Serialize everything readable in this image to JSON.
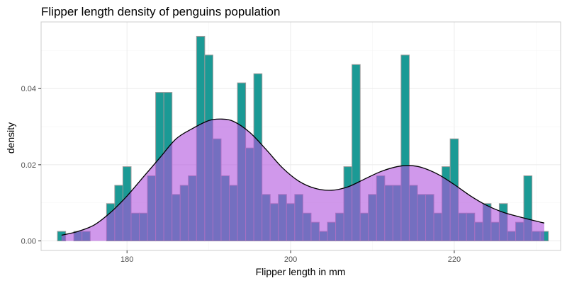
{
  "chart_data": {
    "type": "bar",
    "title": "Flipper length density of penguins population",
    "xlabel": "Flipper length in mm",
    "ylabel": "density",
    "xlim": [
      169.5,
      233.0
    ],
    "ylim": [
      -0.0025,
      0.0575
    ],
    "x_ticks": [
      180,
      200,
      220
    ],
    "x_tick_labels": [
      "180",
      "200",
      "220"
    ],
    "y_ticks": [
      0.0,
      0.02,
      0.04
    ],
    "y_tick_labels": [
      "0.00",
      "0.02",
      "0.04"
    ],
    "grid": true,
    "histogram": {
      "bin_width": 1,
      "bin_centers": [
        172,
        173,
        174,
        175,
        176,
        177,
        178,
        179,
        180,
        181,
        182,
        183,
        184,
        185,
        186,
        187,
        188,
        189,
        190,
        191,
        192,
        193,
        194,
        195,
        196,
        197,
        198,
        199,
        200,
        201,
        202,
        203,
        204,
        205,
        206,
        207,
        208,
        209,
        210,
        211,
        212,
        213,
        214,
        215,
        216,
        217,
        218,
        219,
        220,
        221,
        222,
        223,
        224,
        225,
        226,
        227,
        228,
        229,
        230,
        231
      ],
      "values": [
        0.0025,
        0.0,
        0.0025,
        0.0025,
        0.0,
        0.0,
        0.0098,
        0.0146,
        0.0195,
        0.0073,
        0.0073,
        0.0171,
        0.039,
        0.039,
        0.0122,
        0.0146,
        0.0171,
        0.0537,
        0.0488,
        0.0268,
        0.0171,
        0.0146,
        0.0415,
        0.0244,
        0.0439,
        0.0122,
        0.0098,
        0.0122,
        0.0098,
        0.0122,
        0.0073,
        0.0049,
        0.0025,
        0.0049,
        0.0073,
        0.0195,
        0.0463,
        0.0073,
        0.0122,
        0.0171,
        0.0146,
        0.0146,
        0.0488,
        0.0146,
        0.0122,
        0.0122,
        0.0073,
        0.0195,
        0.0268,
        0.0073,
        0.0073,
        0.0049,
        0.0098,
        0.0049,
        0.0098,
        0.0025,
        0.0049,
        0.0171,
        0.0025,
        0.0025
      ],
      "fill_color": "#1b9a95",
      "border_color": "#9a9a9a"
    },
    "density": {
      "x": [
        172,
        174,
        176,
        178,
        180,
        182,
        184,
        186,
        188,
        190,
        191.5,
        193,
        195,
        197,
        199,
        201,
        203,
        205,
        207,
        209,
        211,
        213,
        214.5,
        216,
        218,
        220,
        222,
        224,
        226,
        228,
        230,
        231
      ],
      "y": [
        0.0015,
        0.0025,
        0.0042,
        0.0075,
        0.0118,
        0.0168,
        0.0218,
        0.0268,
        0.0295,
        0.0316,
        0.032,
        0.0314,
        0.0285,
        0.024,
        0.0192,
        0.0157,
        0.0138,
        0.0133,
        0.0142,
        0.0162,
        0.0182,
        0.0195,
        0.0198,
        0.0193,
        0.0175,
        0.0148,
        0.0118,
        0.0093,
        0.0075,
        0.0063,
        0.0052,
        0.0047
      ],
      "fill_color": "#b053de",
      "fill_opacity": 0.6,
      "line_color": "#000000"
    }
  }
}
